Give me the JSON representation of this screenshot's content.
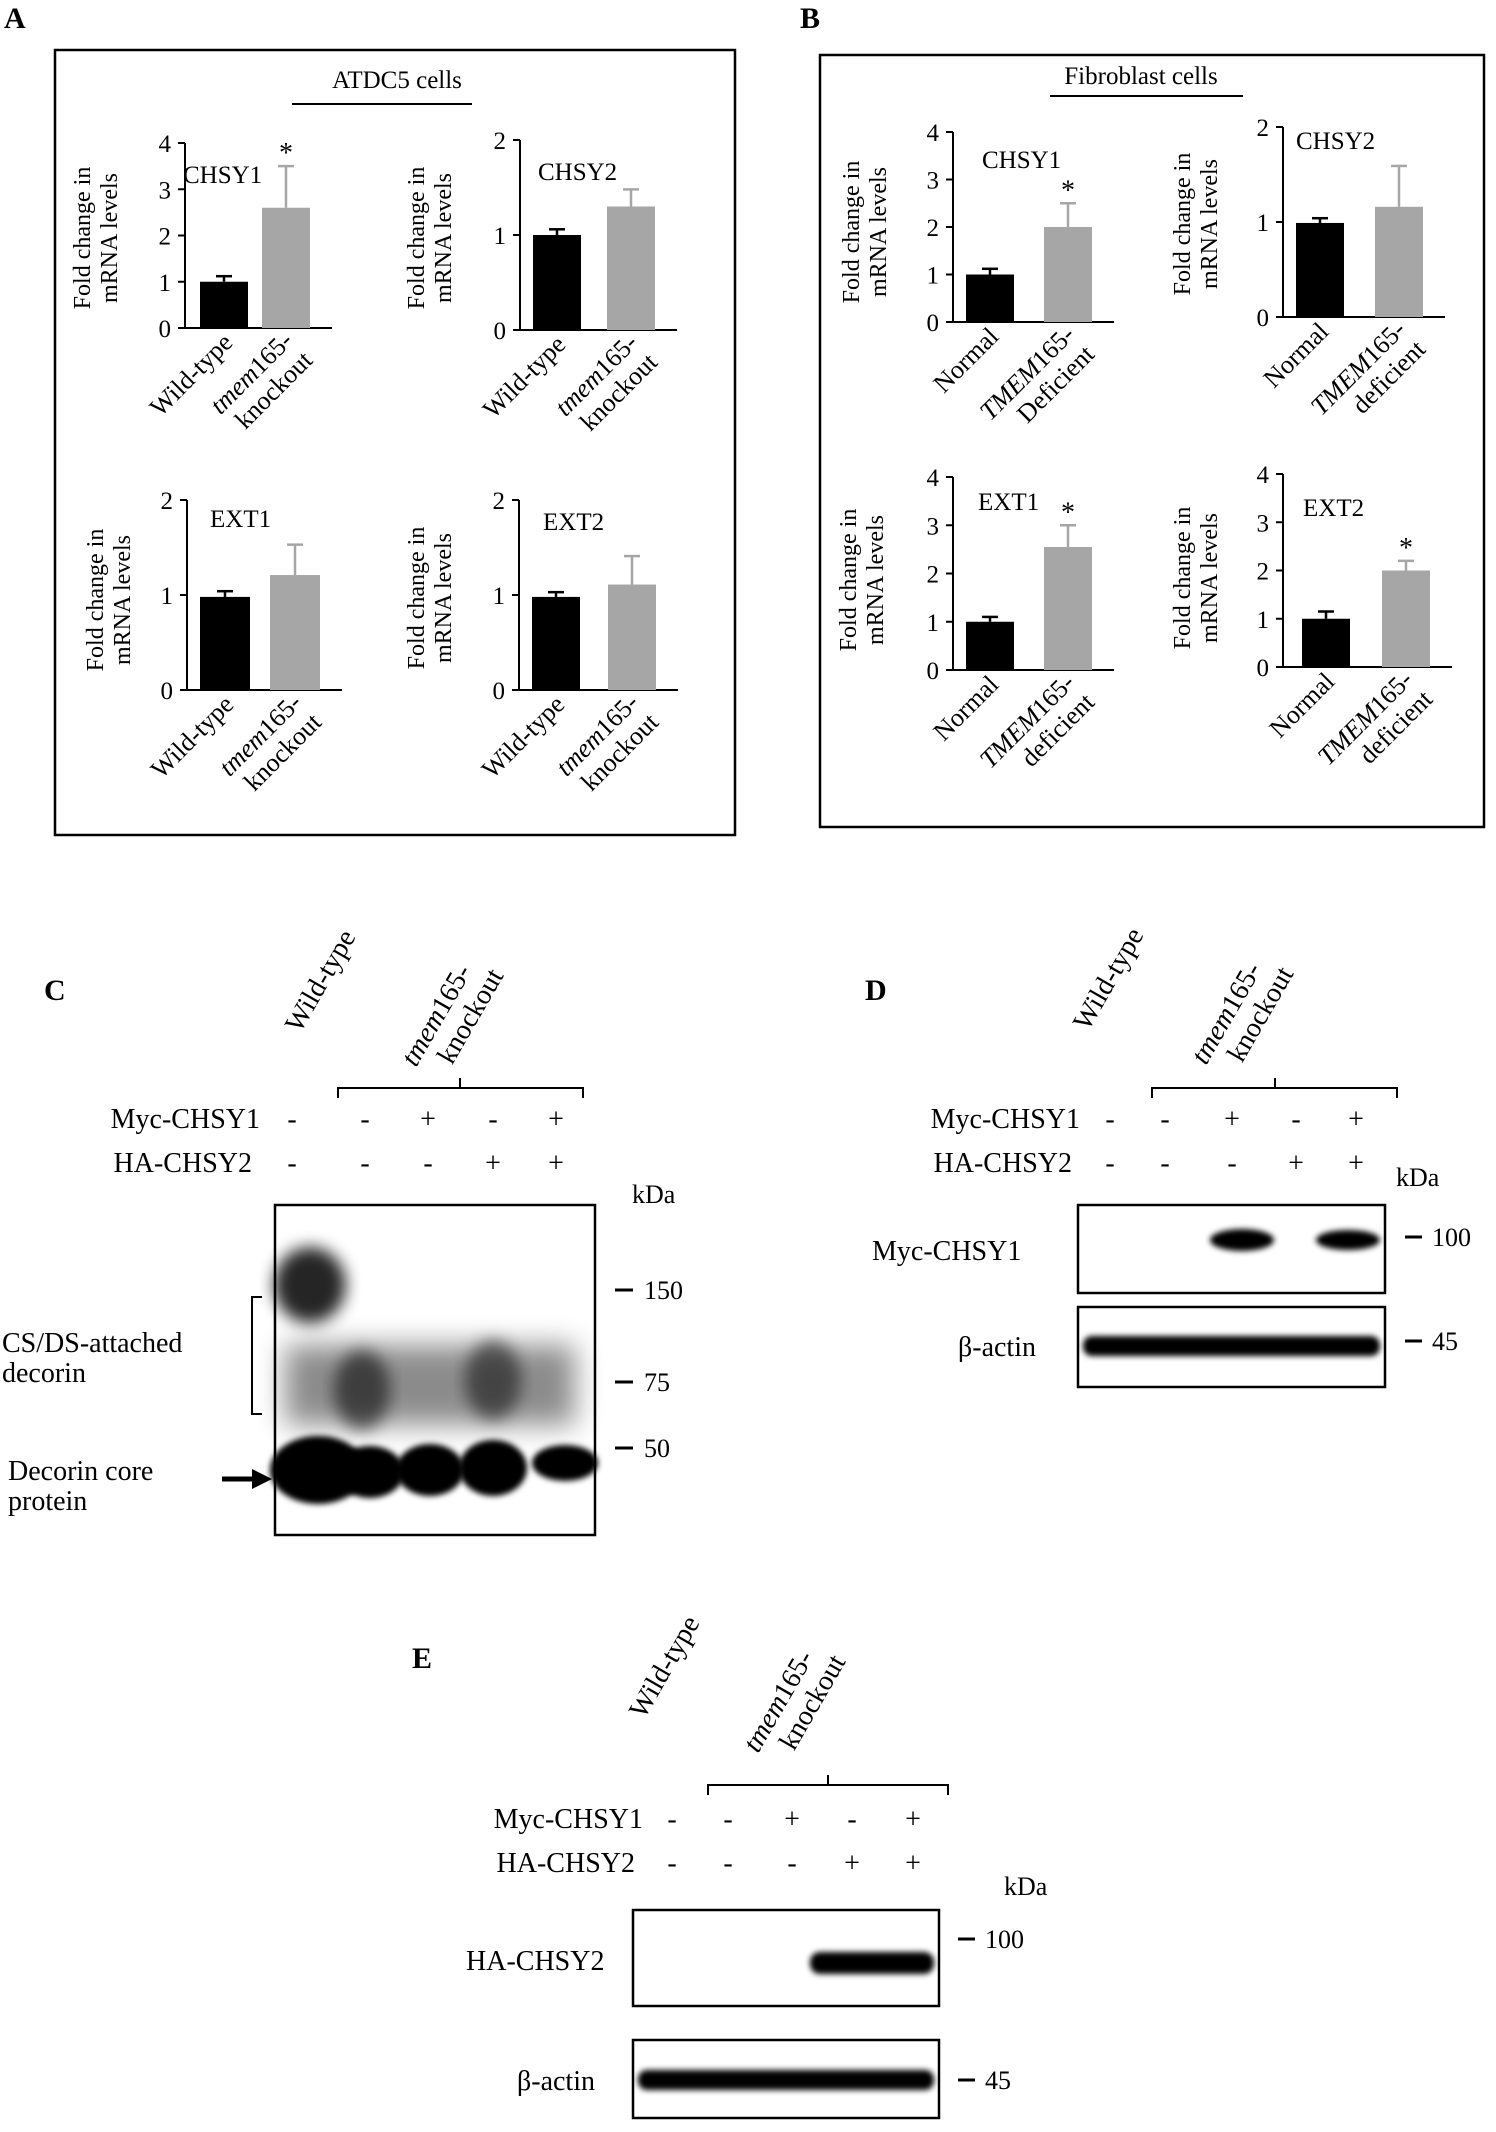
{
  "figure": {
    "panel_labels": {
      "A": "A",
      "B": "B",
      "C": "C",
      "D": "D",
      "E": "E"
    },
    "panel_A": {
      "header": "ATDC5 cells",
      "ylabel_line1": "Fold change in",
      "ylabel_line2": "mRNA levels",
      "x_cat1": "Wild-type",
      "x_cat2_line1_italic": "tmem",
      "x_cat2_line1_rest": "165-",
      "x_cat2_line2": "knockout"
    },
    "panel_B": {
      "header": "Fibroblast cells",
      "ylabel_line1": "Fold change in",
      "ylabel_line2": "mRNA levels",
      "x_cat1": "Normal",
      "x_cat2_line1_italic": "TMEM",
      "x_cat2_line1_rest": "165-",
      "x_cat2_line2_chsy1": "Deficient",
      "x_cat2_line2": "deficient"
    },
    "blots": {
      "lane_wildtype": "Wild-type",
      "lane_ko_italic": "tmem",
      "lane_ko_rest": "165-",
      "lane_ko_line2": "knockout",
      "myc_label": "Myc-CHSY1",
      "ha_label": "HA-CHSY2",
      "myc_signs": [
        "-",
        "-",
        "+",
        "-",
        "+"
      ],
      "ha_signs": [
        "-",
        "-",
        "-",
        "+",
        "+"
      ],
      "kda": "kDa",
      "panel_C": {
        "markers": [
          "150",
          "75",
          "50"
        ],
        "annot_csds_line1": "CS/DS-attached",
        "annot_csds_line2": "decorin",
        "annot_core_line1": "Decorin core",
        "annot_core_line2": "protein"
      },
      "panel_D": {
        "band1_label": "Myc-CHSY1",
        "band2_label": "β-actin",
        "markers": [
          "100",
          "45"
        ]
      },
      "panel_E": {
        "band1_label": "HA-CHSY2",
        "band2_label": "β-actin",
        "markers": [
          "100",
          "45"
        ]
      }
    }
  },
  "chart_data": [
    {
      "type": "bar",
      "panel": "A",
      "title": "CHSY1",
      "categories": [
        "Wild-type",
        "tmem165-knockout"
      ],
      "values": [
        1.0,
        2.6
      ],
      "errors": [
        0.12,
        0.9
      ],
      "significance": [
        "",
        "*"
      ],
      "ylim": [
        0,
        4
      ],
      "yticks": [
        0,
        1,
        2,
        3,
        4
      ],
      "colors": [
        "#000000",
        "#a6a6a6"
      ]
    },
    {
      "type": "bar",
      "panel": "A",
      "title": "CHSY2",
      "categories": [
        "Wild-type",
        "tmem165-knockout"
      ],
      "values": [
        1.0,
        1.3
      ],
      "errors": [
        0.06,
        0.18
      ],
      "significance": [
        "",
        ""
      ],
      "ylim": [
        0,
        2
      ],
      "yticks": [
        0,
        1,
        2
      ],
      "colors": [
        "#000000",
        "#a6a6a6"
      ]
    },
    {
      "type": "bar",
      "panel": "A",
      "title": "EXT1",
      "categories": [
        "Wild-type",
        "tmem165-knockout"
      ],
      "values": [
        0.98,
        1.21
      ],
      "errors": [
        0.06,
        0.32
      ],
      "significance": [
        "",
        ""
      ],
      "ylim": [
        0,
        2
      ],
      "yticks": [
        0,
        1,
        2
      ],
      "colors": [
        "#000000",
        "#a6a6a6"
      ]
    },
    {
      "type": "bar",
      "panel": "A",
      "title": "EXT2",
      "categories": [
        "Wild-type",
        "tmem165-knockout"
      ],
      "values": [
        0.98,
        1.11
      ],
      "errors": [
        0.05,
        0.3
      ],
      "significance": [
        "",
        ""
      ],
      "ylim": [
        0,
        2
      ],
      "yticks": [
        0,
        1,
        2
      ],
      "colors": [
        "#000000",
        "#a6a6a6"
      ]
    },
    {
      "type": "bar",
      "panel": "B",
      "title": "CHSY1",
      "categories": [
        "Normal",
        "TMEM165-Deficient"
      ],
      "values": [
        1.0,
        2.0
      ],
      "errors": [
        0.12,
        0.5
      ],
      "significance": [
        "",
        "*"
      ],
      "ylim": [
        0,
        4
      ],
      "yticks": [
        0,
        1,
        2,
        3,
        4
      ],
      "colors": [
        "#000000",
        "#a6a6a6"
      ]
    },
    {
      "type": "bar",
      "panel": "B",
      "title": "CHSY2",
      "categories": [
        "Normal",
        "TMEM165-deficient"
      ],
      "values": [
        0.99,
        1.16
      ],
      "errors": [
        0.05,
        0.43
      ],
      "significance": [
        "",
        ""
      ],
      "ylim": [
        0,
        2
      ],
      "yticks": [
        0,
        1,
        2
      ],
      "colors": [
        "#000000",
        "#a6a6a6"
      ]
    },
    {
      "type": "bar",
      "panel": "B",
      "title": "EXT1",
      "categories": [
        "Normal",
        "TMEM165-deficient"
      ],
      "values": [
        1.0,
        2.55
      ],
      "errors": [
        0.1,
        0.45
      ],
      "significance": [
        "",
        "*"
      ],
      "ylim": [
        0,
        4
      ],
      "yticks": [
        0,
        1,
        2,
        3,
        4
      ],
      "colors": [
        "#000000",
        "#a6a6a6"
      ]
    },
    {
      "type": "bar",
      "panel": "B",
      "title": "EXT2",
      "categories": [
        "Normal",
        "TMEM165-deficient"
      ],
      "values": [
        1.0,
        2.0
      ],
      "errors": [
        0.15,
        0.2
      ],
      "significance": [
        "",
        "*"
      ],
      "ylim": [
        0,
        4
      ],
      "yticks": [
        0,
        1,
        2,
        3,
        4
      ],
      "colors": [
        "#000000",
        "#a6a6a6"
      ]
    }
  ]
}
